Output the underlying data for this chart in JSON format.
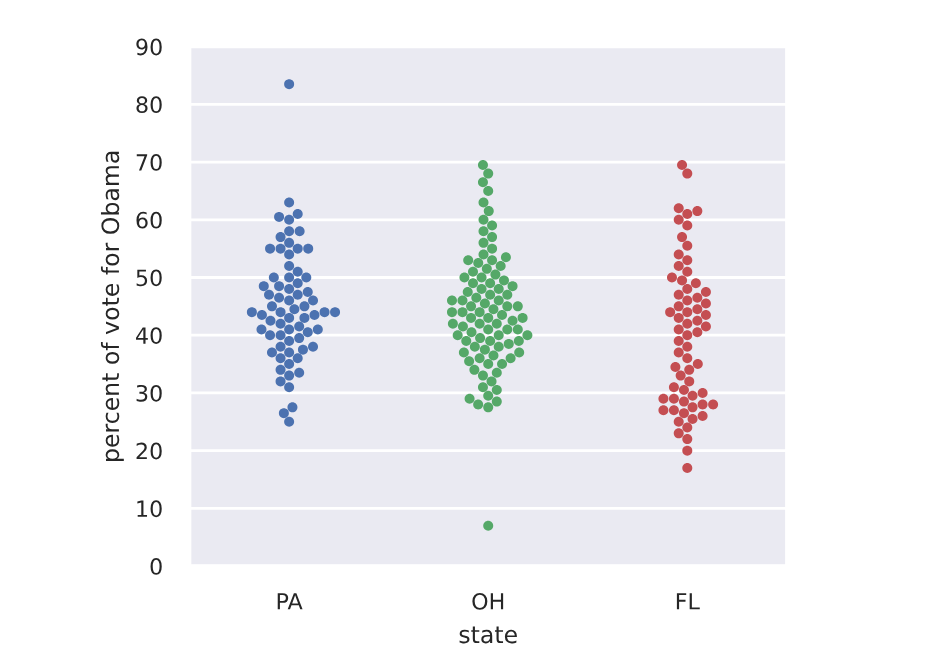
{
  "chart_data": {
    "type": "scatter",
    "xlabel": "state",
    "ylabel": "percent of vote for Obama",
    "categories": [
      "PA",
      "OH",
      "FL"
    ],
    "series": [
      {
        "color": "#4c72b0",
        "x": [
          "PA",
          "PA",
          "PA",
          "PA",
          "PA",
          "PA",
          "PA",
          "PA",
          "PA",
          "PA",
          "PA",
          "PA",
          "PA",
          "PA",
          "PA",
          "PA",
          "PA",
          "PA",
          "PA",
          "PA",
          "PA",
          "PA",
          "PA",
          "PA",
          "PA",
          "PA",
          "PA",
          "PA",
          "PA",
          "PA",
          "PA",
          "PA",
          "PA",
          "PA",
          "PA",
          "PA",
          "PA",
          "PA",
          "PA",
          "PA",
          "PA",
          "PA",
          "PA",
          "PA",
          "PA",
          "PA",
          "PA",
          "PA",
          "PA",
          "PA",
          "PA",
          "PA",
          "PA",
          "PA",
          "PA",
          "PA",
          "PA",
          "PA",
          "PA",
          "PA",
          "PA",
          "PA",
          "PA",
          "PA",
          "PA",
          "PA",
          "PA"
        ],
        "values": [
          83.5,
          63,
          61,
          60.5,
          60,
          58,
          58,
          57,
          56,
          55,
          55,
          55,
          55,
          54,
          52,
          51,
          50,
          50,
          50,
          49,
          48.5,
          48.5,
          48,
          47.5,
          47,
          47,
          46.5,
          46,
          46,
          45,
          45,
          44.5,
          44,
          44,
          44,
          44,
          43.5,
          43.5,
          43,
          43,
          42.5,
          42,
          41.5,
          41,
          41,
          41,
          40.5,
          40,
          40,
          39.5,
          39,
          38,
          38,
          37.5,
          37,
          37,
          36,
          36,
          35,
          34,
          33.5,
          33,
          32,
          31,
          27.5,
          26.5,
          25
        ]
      },
      {
        "color": "#55a868",
        "x": [
          "OH",
          "OH",
          "OH",
          "OH",
          "OH",
          "OH",
          "OH",
          "OH",
          "OH",
          "OH",
          "OH",
          "OH",
          "OH",
          "OH",
          "OH",
          "OH",
          "OH",
          "OH",
          "OH",
          "OH",
          "OH",
          "OH",
          "OH",
          "OH",
          "OH",
          "OH",
          "OH",
          "OH",
          "OH",
          "OH",
          "OH",
          "OH",
          "OH",
          "OH",
          "OH",
          "OH",
          "OH",
          "OH",
          "OH",
          "OH",
          "OH",
          "OH",
          "OH",
          "OH",
          "OH",
          "OH",
          "OH",
          "OH",
          "OH",
          "OH",
          "OH",
          "OH",
          "OH",
          "OH",
          "OH",
          "OH",
          "OH",
          "OH",
          "OH",
          "OH",
          "OH",
          "OH",
          "OH",
          "OH",
          "OH",
          "OH",
          "OH",
          "OH",
          "OH",
          "OH",
          "OH",
          "OH",
          "OH",
          "OH",
          "OH",
          "OH",
          "OH",
          "OH",
          "OH",
          "OH",
          "OH",
          "OH",
          "OH",
          "OH",
          "OH",
          "OH",
          "OH",
          "OH"
        ],
        "values": [
          69.5,
          68,
          66.5,
          65,
          63,
          61.5,
          60,
          59,
          58,
          57,
          56,
          55,
          54,
          53.5,
          53,
          53,
          52.5,
          52,
          51.5,
          51,
          50.5,
          50,
          50,
          49.5,
          49,
          49,
          48.5,
          48,
          48,
          47.5,
          47,
          47,
          46.5,
          46,
          46,
          46,
          45.5,
          45,
          45,
          45,
          44.5,
          44,
          44,
          44,
          43.5,
          43,
          43,
          43,
          42.5,
          42,
          42,
          42,
          41.5,
          41,
          41,
          41,
          40.5,
          40,
          40,
          40,
          39.5,
          39,
          39,
          39,
          38.5,
          38,
          38,
          37.5,
          37,
          37,
          36.5,
          36,
          36,
          35.5,
          35,
          35,
          34,
          33.5,
          33,
          32,
          31,
          30.5,
          29.5,
          29,
          28.5,
          28,
          27.5,
          7
        ]
      },
      {
        "color": "#c44e52",
        "x": [
          "FL",
          "FL",
          "FL",
          "FL",
          "FL",
          "FL",
          "FL",
          "FL",
          "FL",
          "FL",
          "FL",
          "FL",
          "FL",
          "FL",
          "FL",
          "FL",
          "FL",
          "FL",
          "FL",
          "FL",
          "FL",
          "FL",
          "FL",
          "FL",
          "FL",
          "FL",
          "FL",
          "FL",
          "FL",
          "FL",
          "FL",
          "FL",
          "FL",
          "FL",
          "FL",
          "FL",
          "FL",
          "FL",
          "FL",
          "FL",
          "FL",
          "FL",
          "FL",
          "FL",
          "FL",
          "FL",
          "FL",
          "FL",
          "FL",
          "FL",
          "FL",
          "FL",
          "FL",
          "FL",
          "FL",
          "FL",
          "FL",
          "FL",
          "FL",
          "FL",
          "FL",
          "FL",
          "FL",
          "FL"
        ],
        "values": [
          69.5,
          68,
          62,
          61.5,
          61,
          60,
          59,
          57,
          55.5,
          54,
          53,
          52,
          51,
          50,
          49.5,
          49,
          48,
          47.5,
          47,
          46.5,
          46,
          45.5,
          45,
          44.5,
          44,
          44,
          43.5,
          43,
          42.5,
          42,
          41.5,
          41,
          40.5,
          40,
          39,
          38,
          37,
          36,
          35,
          34.5,
          34,
          33,
          32,
          31,
          30.5,
          30,
          29.5,
          29,
          29,
          28.5,
          28,
          28,
          27.5,
          27,
          27,
          26.5,
          26,
          25.5,
          25,
          24,
          23,
          22,
          20,
          17
        ]
      }
    ],
    "ylim": [
      0,
      90
    ],
    "yticks": [
      0,
      10,
      20,
      30,
      40,
      50,
      60,
      70,
      80,
      90
    ],
    "grid": "y",
    "marker": "circle"
  }
}
